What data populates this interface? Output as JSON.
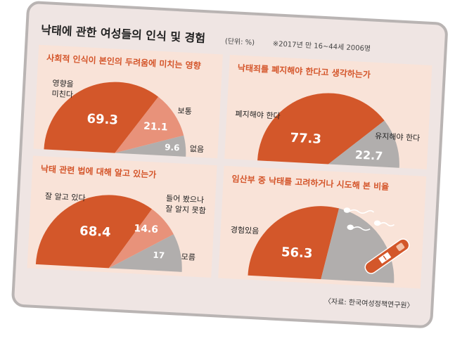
{
  "header": {
    "title": "낙태에 관한 여성들의 인식 및 경험",
    "unit": "(단위: %)",
    "note": "※2017년 만 16~44세 2006명"
  },
  "source": "〈자료: 한국여성정책연구원〉",
  "colors": {
    "primary": "#d3572a",
    "secondary": "#e8927a",
    "gray": "#b1aead",
    "panel_bg": "#f9e3d8",
    "frame_bg": "#efe5e3",
    "title_color": "#d4552a"
  },
  "illustration": [
    "sperm-icon",
    "pregnancy-test-icon"
  ],
  "chart_data": [
    {
      "type": "pie",
      "shape": "semicircle",
      "title": "사회적 인식이 본인의 두려움에 미치는 영향",
      "slices": [
        {
          "label": "영향을 미친다",
          "value": 69.3,
          "display": "69.3",
          "color": "#d3572a"
        },
        {
          "label": "보통",
          "value": 21.1,
          "display": "21.1",
          "color": "#e8927a"
        },
        {
          "label": "없음",
          "value": 9.6,
          "display": "9.6",
          "color": "#b1aead"
        }
      ]
    },
    {
      "type": "pie",
      "shape": "semicircle",
      "title": "낙태죄를 폐지해야 한다고 생각하는가",
      "slices": [
        {
          "label": "폐지해야 한다",
          "value": 77.3,
          "display": "77.3",
          "color": "#d3572a"
        },
        {
          "label": "유지해야 한다",
          "value": 22.7,
          "display": "22.7",
          "color": "#b1aead"
        }
      ]
    },
    {
      "type": "pie",
      "shape": "semicircle",
      "title": "낙태 관련 법에 대해 알고 있는가",
      "slices": [
        {
          "label": "잘 알고 있다",
          "value": 68.4,
          "display": "68.4",
          "color": "#d3572a"
        },
        {
          "label": "들어 봤으나 잘 알지 못함",
          "value": 14.6,
          "display": "14.6",
          "color": "#e8927a"
        },
        {
          "label": "모름",
          "value": 17,
          "display": "17",
          "color": "#b1aead"
        }
      ]
    },
    {
      "type": "pie",
      "shape": "semicircle",
      "title": "임산부 중 낙태를 고려하거나 시도해 본 비율",
      "slices": [
        {
          "label": "경험있음",
          "value": 56.3,
          "display": "56.3",
          "color": "#d3572a"
        },
        {
          "label": "",
          "value": 43.7,
          "display": "",
          "color": "#b1aead"
        }
      ]
    }
  ]
}
